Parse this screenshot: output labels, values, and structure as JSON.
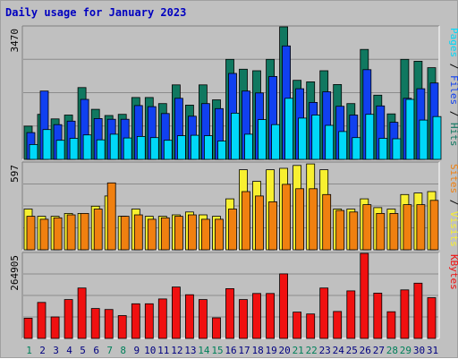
{
  "title": "Daily usage for January 2023",
  "chart_data": [
    {
      "type": "bar",
      "panel": "top",
      "categories": [
        "1",
        "2",
        "3",
        "4",
        "5",
        "6",
        "7",
        "8",
        "9",
        "10",
        "11",
        "12",
        "13",
        "14",
        "15",
        "16",
        "17",
        "18",
        "19",
        "20",
        "21",
        "22",
        "23",
        "24",
        "25",
        "26",
        "27",
        "28",
        "29",
        "30",
        "31"
      ],
      "weekend_days": [
        "1",
        "7",
        "8",
        "14",
        "15",
        "21",
        "22",
        "28",
        "29"
      ],
      "ylim": [
        0,
        3470
      ],
      "ytick_label": "3470",
      "legend": [
        {
          "name": "Pages",
          "color": "#00d8f8"
        },
        {
          "name": "Files",
          "color": "#1040f0"
        },
        {
          "name": "Hits",
          "color": "#107860"
        }
      ],
      "separator": " / ",
      "series": [
        {
          "name": "Hits",
          "color": "#107860",
          "values": [
            870,
            1180,
            1060,
            1160,
            1880,
            1310,
            1150,
            1180,
            1620,
            1620,
            1460,
            1950,
            1420,
            1950,
            1560,
            2620,
            2360,
            2320,
            2620,
            3470,
            2070,
            2030,
            2320,
            1960,
            1460,
            2880,
            1680,
            1190,
            2620,
            2570,
            2400
          ]
        },
        {
          "name": "Files",
          "color": "#1040f0",
          "values": [
            700,
            1790,
            910,
            1000,
            1570,
            1070,
            1050,
            1050,
            1410,
            1380,
            1200,
            1600,
            1130,
            1460,
            1330,
            2250,
            1790,
            1740,
            2170,
            2970,
            1850,
            1490,
            1770,
            1390,
            1160,
            2350,
            1400,
            970,
            1600,
            1850,
            2000
          ]
        },
        {
          "name": "Pages",
          "color": "#00d8f8",
          "values": [
            390,
            780,
            500,
            550,
            640,
            510,
            660,
            560,
            600,
            570,
            500,
            620,
            630,
            620,
            480,
            1210,
            660,
            1040,
            910,
            1600,
            1080,
            1160,
            890,
            730,
            570,
            1180,
            550,
            540,
            1570,
            1030,
            1120
          ]
        }
      ]
    },
    {
      "type": "bar",
      "panel": "middle",
      "categories": [
        "1",
        "2",
        "3",
        "4",
        "5",
        "6",
        "7",
        "8",
        "9",
        "10",
        "11",
        "12",
        "13",
        "14",
        "15",
        "16",
        "17",
        "18",
        "19",
        "20",
        "21",
        "22",
        "23",
        "24",
        "25",
        "26",
        "27",
        "28",
        "29",
        "30",
        "31"
      ],
      "ylim": [
        0,
        597
      ],
      "ytick_label": "597",
      "legend": [
        {
          "name": "Sites",
          "color": "#f08010"
        },
        {
          "name": "Visits",
          "color": "#f8f030"
        }
      ],
      "separator": " / ",
      "series": [
        {
          "name": "Visits",
          "color": "#f8f030",
          "values": [
            280,
            230,
            230,
            250,
            250,
            300,
            370,
            230,
            280,
            230,
            230,
            240,
            260,
            240,
            230,
            350,
            550,
            470,
            550,
            560,
            580,
            590,
            550,
            280,
            280,
            350,
            290,
            280,
            380,
            390,
            400
          ]
        },
        {
          "name": "Sites",
          "color": "#f08010",
          "values": [
            230,
            210,
            220,
            240,
            250,
            280,
            460,
            230,
            240,
            210,
            220,
            230,
            240,
            210,
            210,
            280,
            400,
            370,
            330,
            450,
            420,
            420,
            380,
            270,
            260,
            310,
            250,
            250,
            310,
            310,
            340
          ]
        }
      ]
    },
    {
      "type": "bar",
      "panel": "bottom",
      "categories": [
        "1",
        "2",
        "3",
        "4",
        "5",
        "6",
        "7",
        "8",
        "9",
        "10",
        "11",
        "12",
        "13",
        "14",
        "15",
        "16",
        "17",
        "18",
        "19",
        "20",
        "21",
        "22",
        "23",
        "24",
        "25",
        "26",
        "27",
        "28",
        "29",
        "30",
        "31"
      ],
      "ylim": [
        0,
        264905
      ],
      "ytick_label": "264905",
      "legend": [
        {
          "name": "KBytes",
          "color": "#f01010"
        }
      ],
      "separator": "",
      "series": [
        {
          "name": "KBytes",
          "color": "#f01010",
          "values": [
            63000,
            112000,
            67000,
            121000,
            157000,
            93000,
            90000,
            71000,
            108000,
            108000,
            123000,
            160000,
            136000,
            121000,
            64000,
            155000,
            121000,
            140000,
            140000,
            201000,
            82000,
            76000,
            157000,
            84000,
            148000,
            265000,
            141000,
            83000,
            151000,
            172000,
            127000
          ]
        }
      ]
    }
  ]
}
